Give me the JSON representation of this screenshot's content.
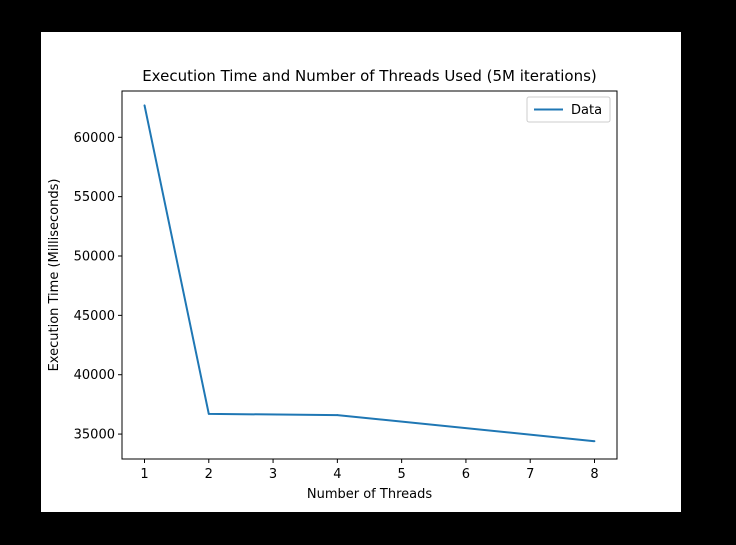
{
  "chart_data": {
    "type": "line",
    "title": "Execution Time and Number of Threads Used (5M iterations)",
    "xlabel": "Number of Threads",
    "ylabel": "Execution Time (Milliseconds)",
    "x_ticks": [
      1,
      2,
      3,
      4,
      5,
      6,
      7,
      8
    ],
    "y_ticks": [
      35000,
      40000,
      45000,
      50000,
      55000,
      60000
    ],
    "xlim": [
      0.65,
      8.35
    ],
    "ylim": [
      32900,
      63900
    ],
    "grid": false,
    "legend_position": "top-right",
    "series": [
      {
        "name": "Data",
        "color": "#1f77b4",
        "x": [
          1,
          2,
          4,
          8
        ],
        "y": [
          62700,
          36700,
          36600,
          34400
        ]
      }
    ]
  }
}
